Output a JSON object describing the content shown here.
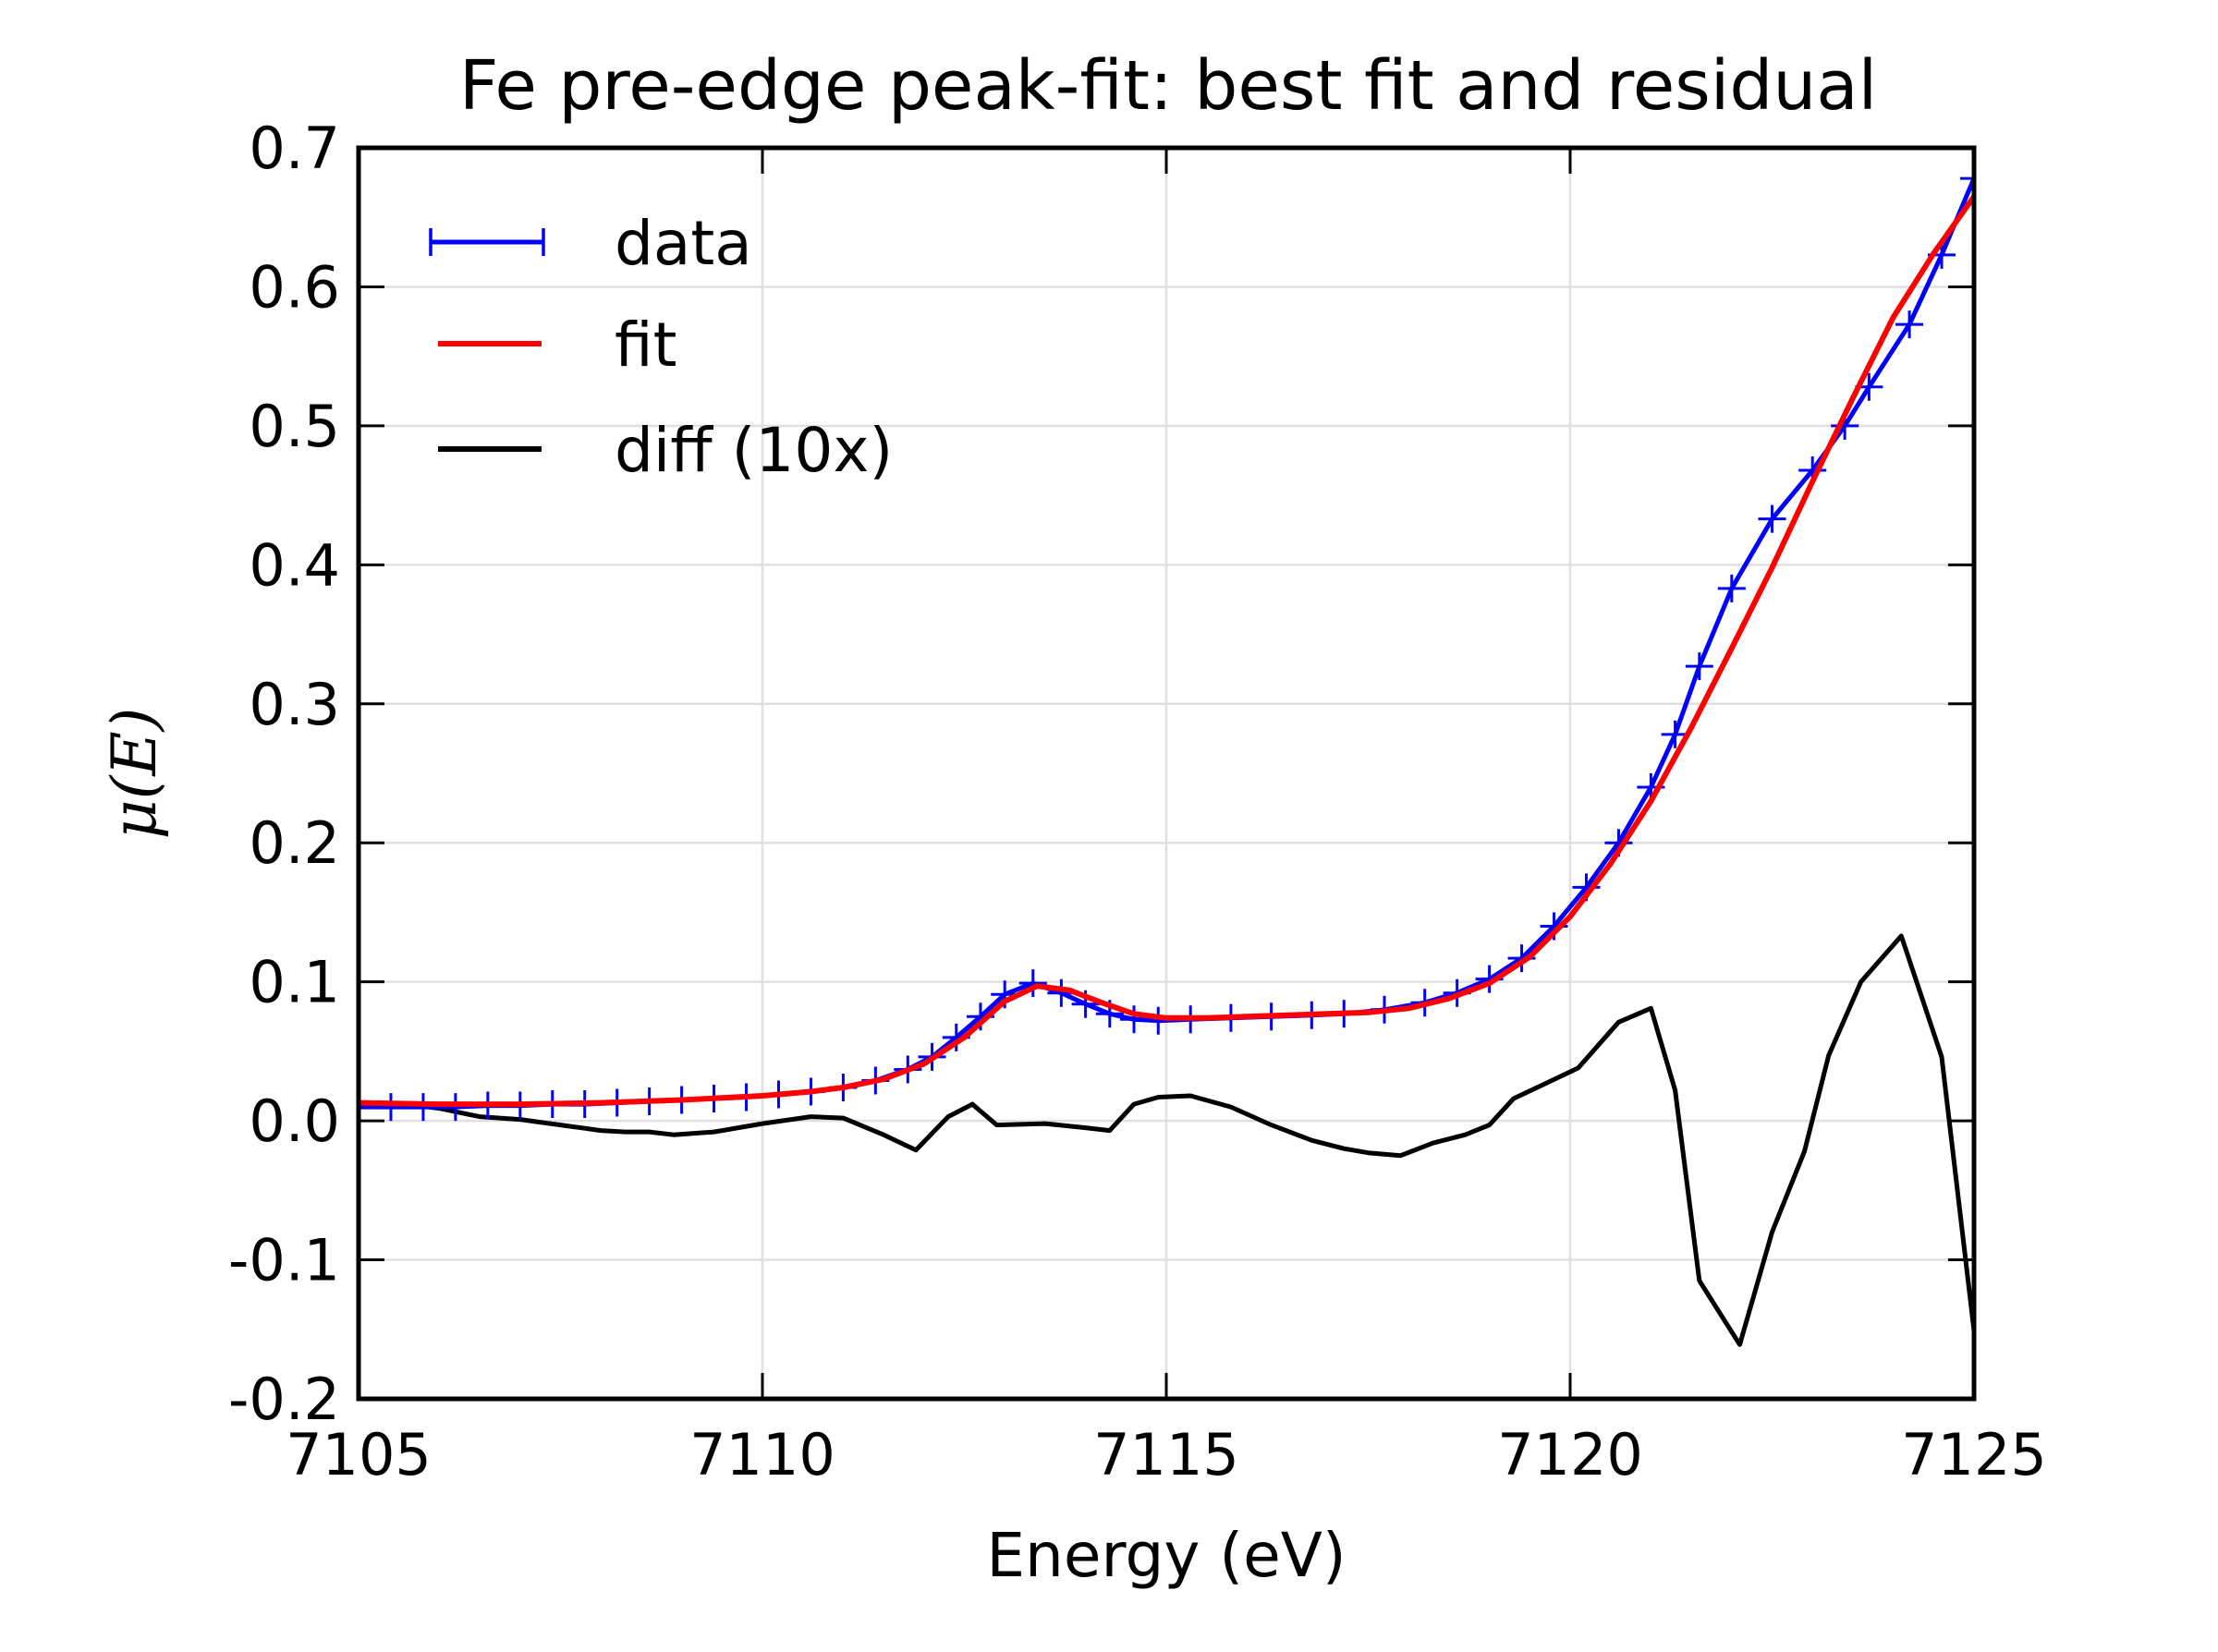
{
  "chart_data": {
    "type": "line",
    "title": "Fe pre-edge peak-fit: best fit and residual",
    "xlabel": "Energy (eV)",
    "ylabel": "μ(E)",
    "xlim": [
      7105,
      7125
    ],
    "ylim": [
      -0.2,
      0.7
    ],
    "xticks": [
      7105,
      7110,
      7115,
      7120,
      7125
    ],
    "xtick_labels": [
      "7105",
      "7110",
      "7115",
      "7120",
      "7125"
    ],
    "yticks": [
      -0.2,
      -0.1,
      0.0,
      0.1,
      0.2,
      0.3,
      0.4,
      0.5,
      0.6,
      0.7
    ],
    "ytick_labels": [
      "-0.2",
      "-0.1",
      "0.0",
      "0.1",
      "0.2",
      "0.3",
      "0.4",
      "0.5",
      "0.6",
      "0.7"
    ],
    "grid": true,
    "legend_position": "top-left",
    "series": [
      {
        "name": "data",
        "color": "#0000ff",
        "marker": "plus",
        "x": [
          7105.0,
          7105.4,
          7105.8,
          7106.2,
          7106.6,
          7107.0,
          7107.4,
          7107.8,
          7108.2,
          7108.6,
          7109.0,
          7109.4,
          7109.8,
          7110.2,
          7110.6,
          7111.0,
          7111.4,
          7111.8,
          7112.1,
          7112.4,
          7112.7,
          7113.0,
          7113.35,
          7113.7,
          7114.0,
          7114.3,
          7114.6,
          7114.9,
          7115.3,
          7115.8,
          7116.3,
          7116.8,
          7117.2,
          7117.7,
          7118.2,
          7118.6,
          7119.0,
          7119.4,
          7119.8,
          7120.2,
          7120.6,
          7121.0,
          7121.3,
          7121.6,
          7122.0,
          7122.5,
          7123.0,
          7123.4,
          7123.7,
          7124.2,
          7124.6,
          7125.0
        ],
        "y": [
          0.01,
          0.01,
          0.01,
          0.01,
          0.011,
          0.011,
          0.012,
          0.012,
          0.013,
          0.014,
          0.015,
          0.016,
          0.017,
          0.019,
          0.021,
          0.024,
          0.029,
          0.037,
          0.046,
          0.06,
          0.075,
          0.091,
          0.099,
          0.092,
          0.084,
          0.077,
          0.073,
          0.072,
          0.073,
          0.074,
          0.075,
          0.076,
          0.077,
          0.08,
          0.085,
          0.092,
          0.102,
          0.117,
          0.14,
          0.168,
          0.2,
          0.24,
          0.278,
          0.327,
          0.383,
          0.433,
          0.468,
          0.5,
          0.528,
          0.573,
          0.623,
          0.678
        ]
      },
      {
        "name": "fit",
        "color": "#ff0000",
        "x": [
          7105.0,
          7106.0,
          7107.0,
          7108.0,
          7109.0,
          7110.0,
          7110.6,
          7111.0,
          7111.5,
          7112.0,
          7112.5,
          7113.0,
          7113.4,
          7113.8,
          7114.2,
          7114.6,
          7115.0,
          7115.5,
          7116.0,
          7116.5,
          7117.0,
          7117.5,
          7118.0,
          7118.5,
          7119.0,
          7119.5,
          7120.0,
          7120.5,
          7121.0,
          7121.5,
          7122.0,
          7122.5,
          7123.0,
          7123.5,
          7124.0,
          7124.5,
          7125.0
        ],
        "y": [
          0.013,
          0.012,
          0.012,
          0.013,
          0.015,
          0.018,
          0.021,
          0.024,
          0.03,
          0.041,
          0.06,
          0.086,
          0.097,
          0.094,
          0.085,
          0.077,
          0.074,
          0.074,
          0.075,
          0.076,
          0.077,
          0.078,
          0.081,
          0.088,
          0.099,
          0.118,
          0.147,
          0.185,
          0.23,
          0.283,
          0.34,
          0.398,
          0.46,
          0.52,
          0.578,
          0.624,
          0.665
        ]
      },
      {
        "name": "diff (10x)",
        "color": "#000000",
        "x": [
          7105.0,
          7105.6,
          7106.0,
          7106.5,
          7107.0,
          7107.5,
          7108.0,
          7108.3,
          7108.6,
          7108.9,
          7109.4,
          7110.0,
          7110.6,
          7111.0,
          7111.5,
          7111.9,
          7112.3,
          7112.6,
          7112.9,
          7113.5,
          7114.0,
          7114.3,
          7114.6,
          7114.9,
          7115.3,
          7115.8,
          7116.3,
          7116.8,
          7117.2,
          7117.5,
          7117.9,
          7118.3,
          7118.7,
          7119.0,
          7119.3,
          7119.7,
          7120.1,
          7120.6,
          7121.0,
          7121.3,
          7121.6,
          7122.1,
          7122.5,
          7122.9,
          7123.2,
          7123.6,
          7124.1,
          7124.6,
          7125.0
        ],
        "y": [
          0.013,
          0.012,
          0.009,
          0.003,
          0.001,
          -0.003,
          -0.007,
          -0.008,
          -0.008,
          -0.01,
          -0.008,
          -0.002,
          0.003,
          0.002,
          -0.01,
          -0.021,
          0.003,
          0.012,
          -0.003,
          -0.002,
          -0.005,
          -0.007,
          0.012,
          0.017,
          0.018,
          0.01,
          -0.003,
          -0.014,
          -0.02,
          -0.023,
          -0.025,
          -0.016,
          -0.01,
          -0.003,
          0.016,
          0.027,
          0.038,
          0.071,
          0.081,
          0.022,
          -0.115,
          -0.161,
          -0.08,
          -0.022,
          0.047,
          0.1,
          0.133,
          0.046,
          -0.151
        ]
      }
    ]
  }
}
